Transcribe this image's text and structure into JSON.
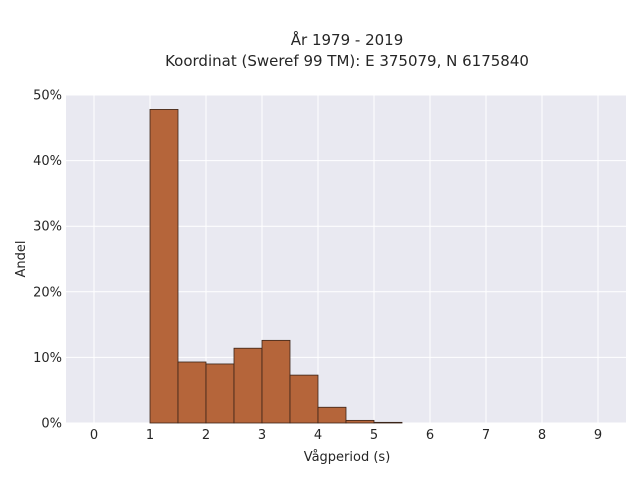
{
  "chart_data": {
    "type": "bar",
    "title": "År 1979 - 2019",
    "subtitle": "Koordinat (Sweref 99 TM): E 375079, N 6175840",
    "xlabel": "Vågperiod (s)",
    "ylabel": "Andel",
    "xlim": [
      -0.5,
      9.5
    ],
    "ylim": [
      0,
      50
    ],
    "x_ticks": [
      "0",
      "1",
      "2",
      "3",
      "4",
      "5",
      "6",
      "7",
      "8",
      "9"
    ],
    "y_ticks": [
      "0%",
      "10%",
      "20%",
      "30%",
      "40%",
      "50%"
    ],
    "bin_width": 0.5,
    "bins": [
      {
        "x0": 1.0,
        "x1": 1.5,
        "value": 47.8
      },
      {
        "x0": 1.5,
        "x1": 2.0,
        "value": 9.3
      },
      {
        "x0": 2.0,
        "x1": 2.5,
        "value": 9.0
      },
      {
        "x0": 2.5,
        "x1": 3.0,
        "value": 11.4
      },
      {
        "x0": 3.0,
        "x1": 3.5,
        "value": 12.6
      },
      {
        "x0": 3.5,
        "x1": 4.0,
        "value": 7.3
      },
      {
        "x0": 4.0,
        "x1": 4.5,
        "value": 2.4
      },
      {
        "x0": 4.5,
        "x1": 5.0,
        "value": 0.4
      },
      {
        "x0": 5.0,
        "x1": 5.5,
        "value": 0.1
      }
    ],
    "grid": true,
    "colors": {
      "bar_fill": "#b5653a",
      "bar_stroke": "#3a2418",
      "plot_background": "#e9e9f1",
      "grid": "#ffffff"
    }
  }
}
